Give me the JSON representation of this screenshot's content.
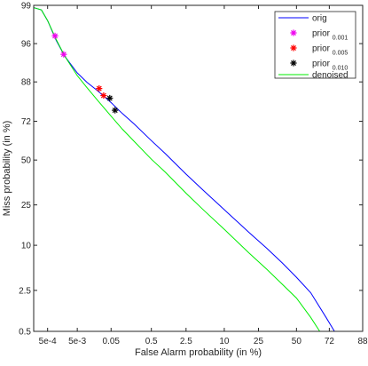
{
  "chart_data": {
    "type": "line",
    "xlabel": "False Alarm probability (in %)",
    "ylabel": "Miss probability (in %)",
    "x_scale": "probit",
    "y_scale": "probit",
    "xlim": [
      0.000155,
      88
    ],
    "ylim": [
      0.5,
      99
    ],
    "x_ticks": [
      {
        "value": 0.0005,
        "label": "5e-4"
      },
      {
        "value": 0.005,
        "label": "5e-3"
      },
      {
        "value": 0.05,
        "label": "0.05"
      },
      {
        "value": 0.5,
        "label": "0.5"
      },
      {
        "value": 2.5,
        "label": "2.5"
      },
      {
        "value": 10,
        "label": "10"
      },
      {
        "value": 25,
        "label": "25"
      },
      {
        "value": 50,
        "label": "50"
      },
      {
        "value": 72,
        "label": "72"
      },
      {
        "value": 88,
        "label": "88"
      }
    ],
    "y_ticks": [
      {
        "value": 0.5,
        "label": "0.5"
      },
      {
        "value": 2.5,
        "label": "2.5"
      },
      {
        "value": 10,
        "label": "10"
      },
      {
        "value": 25,
        "label": "25"
      },
      {
        "value": 50,
        "label": "50"
      },
      {
        "value": 72,
        "label": "72"
      },
      {
        "value": 88,
        "label": "88"
      },
      {
        "value": 96,
        "label": "96"
      },
      {
        "value": 99,
        "label": "99"
      }
    ],
    "grid": false,
    "legend_position": "top-right",
    "series": [
      {
        "name": "orig",
        "kind": "line",
        "color": "#0000ff",
        "x": [
          0.00016,
          0.0003,
          0.0005,
          0.001,
          0.002,
          0.005,
          0.01,
          0.02,
          0.05,
          0.1,
          0.2,
          0.5,
          1,
          2.5,
          5,
          10,
          20,
          30,
          40,
          50,
          60,
          70,
          75
        ],
        "y": [
          98.9,
          98.8,
          98.2,
          96.4,
          94.0,
          90.5,
          87.9,
          85.3,
          80.6,
          75.8,
          70.5,
          61.5,
          53.8,
          41.6,
          32.2,
          22.8,
          13.8,
          9.2,
          6.1,
          3.9,
          2.3,
          0.9,
          0.5
        ]
      },
      {
        "name": "denoised",
        "kind": "line",
        "color": "#00ee00",
        "x": [
          0.00016,
          0.0003,
          0.0005,
          0.001,
          0.002,
          0.005,
          0.01,
          0.02,
          0.05,
          0.1,
          0.2,
          0.5,
          1,
          2.5,
          5,
          10,
          20,
          30,
          40,
          50,
          60,
          66
        ],
        "y": [
          98.9,
          98.8,
          98.2,
          96.5,
          94.0,
          89.8,
          86.2,
          81.8,
          74.5,
          67.9,
          60.9,
          50.5,
          42.7,
          30.9,
          22.5,
          14.9,
          8.1,
          5.0,
          3.1,
          1.9,
          0.9,
          0.5
        ]
      },
      {
        "name": "prior 0.001",
        "name_main": "prior",
        "name_sub": "0.001",
        "kind": "marker",
        "color": "#ee00ee",
        "x": [
          0.00091,
          0.0018
        ],
        "y": [
          96.9,
          94.4
        ]
      },
      {
        "name": "prior 0.005",
        "name_main": "prior",
        "name_sub": "0.005",
        "kind": "marker",
        "color": "#ff0000",
        "x": [
          0.023,
          0.031
        ],
        "y": [
          85.9,
          83.4
        ]
      },
      {
        "name": "prior 0.010",
        "name_main": "prior",
        "name_sub": "0.010",
        "kind": "marker",
        "color": "#000000",
        "x": [
          0.046,
          0.064
        ],
        "y": [
          82.4,
          77.3
        ]
      }
    ]
  }
}
